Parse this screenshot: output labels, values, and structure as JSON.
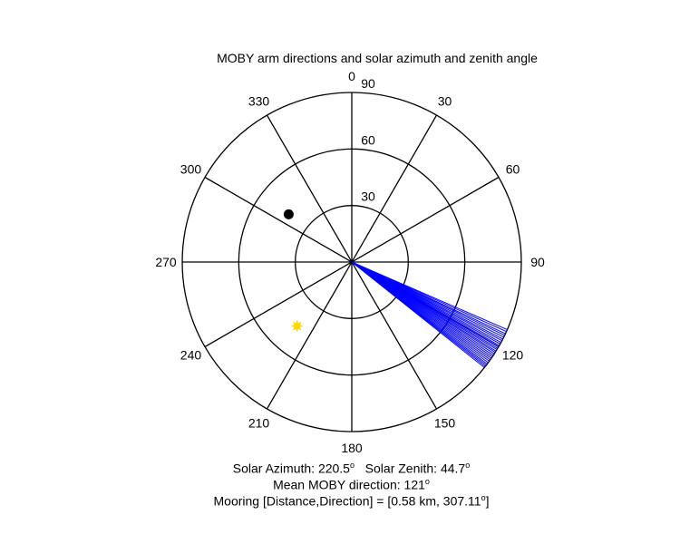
{
  "chart_data": {
    "type": "polar",
    "title": "MOBY arm directions and solar azimuth and zenith angle",
    "radial_axis": {
      "min": 0,
      "max": 90,
      "ticks": [
        30,
        60,
        90
      ],
      "tick_labels": [
        "30",
        "60",
        "90"
      ]
    },
    "angular_axis": {
      "zero": "top",
      "direction": "clockwise",
      "ticks": [
        0,
        30,
        60,
        90,
        120,
        150,
        180,
        210,
        240,
        270,
        300,
        330
      ],
      "tick_labels": [
        "0",
        "30",
        "60",
        "90",
        "120",
        "150",
        "180",
        "210",
        "240",
        "270",
        "300",
        "330"
      ]
    },
    "grid": true,
    "series": [
      {
        "kind": "rays",
        "color": "#0000ff",
        "azimuths": [
          113.5,
          114.2,
          115.0,
          115.6,
          116.3,
          117.0,
          117.6,
          118.3,
          118.9,
          119.5,
          120.0,
          120.6,
          121.1,
          121.7,
          122.2,
          122.8,
          123.4,
          124.0,
          124.6,
          125.2,
          125.8,
          126.4,
          127.0,
          127.5,
          128.0,
          128.5
        ]
      },
      {
        "kind": "marker",
        "color": "#000000",
        "azimuth": 307.11,
        "radius": 42,
        "symbol": "filled-circle"
      },
      {
        "kind": "marker",
        "color": "#ffd700",
        "azimuth": 220.5,
        "radius": 44.7,
        "symbol": "star"
      }
    ],
    "captions": {
      "solar_azimuth_label": "Solar Azimuth:",
      "solar_azimuth_value": "220.5",
      "solar_zenith_label": "Solar Zenith:",
      "solar_zenith_value": "44.7",
      "degree_sign": "o",
      "mean_direction_label": "Mean MOBY direction:",
      "mean_direction_value": "121",
      "mooring_text": "Mooring [Distance,Direction] = [0.58 km, 307.11",
      "mooring_close": "]"
    }
  }
}
